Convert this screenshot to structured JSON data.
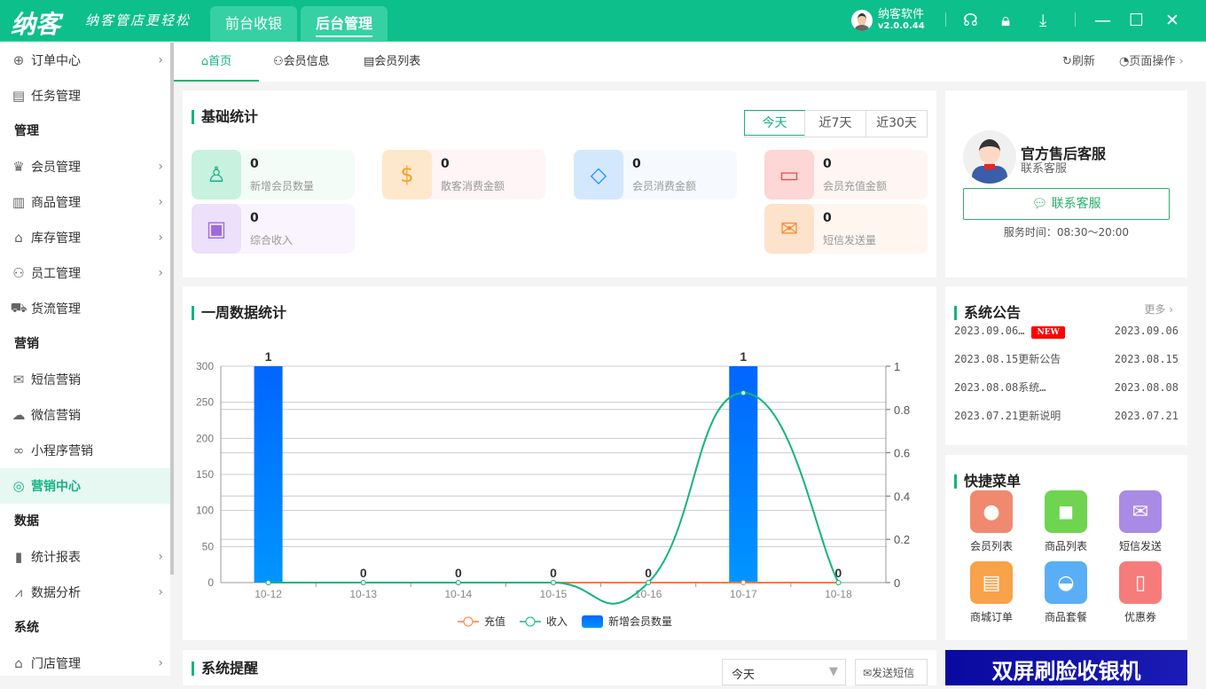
{
  "app": {
    "logo": "纳客",
    "slogan": "纳客管店更轻松",
    "tabs": [
      "前台收银",
      "后台管理"
    ],
    "active_tab": 1,
    "user": "纳客软件",
    "version": "v2.0.0.44"
  },
  "colors": {
    "brand": "#0dbf8b",
    "accent": "#12b383"
  },
  "sidebar": {
    "items": [
      {
        "type": "item",
        "label": "订单中心",
        "icon": "globe-icon",
        "chev": true
      },
      {
        "type": "item",
        "label": "任务管理",
        "icon": "task-icon"
      },
      {
        "type": "group",
        "label": "管理"
      },
      {
        "type": "item",
        "label": "会员管理",
        "icon": "crown-icon",
        "chev": true
      },
      {
        "type": "item",
        "label": "商品管理",
        "icon": "goods-icon",
        "chev": true
      },
      {
        "type": "item",
        "label": "库存管理",
        "icon": "warehouse-icon",
        "chev": true
      },
      {
        "type": "item",
        "label": "员工管理",
        "icon": "staff-icon",
        "chev": true
      },
      {
        "type": "item",
        "label": "货流管理",
        "icon": "truck-icon"
      },
      {
        "type": "group",
        "label": "营销"
      },
      {
        "type": "item",
        "label": "短信营销",
        "icon": "mail-icon"
      },
      {
        "type": "item",
        "label": "微信营销",
        "icon": "wechat-icon"
      },
      {
        "type": "item",
        "label": "小程序营销",
        "icon": "miniapp-icon"
      },
      {
        "type": "item",
        "label": "营销中心",
        "icon": "target-icon",
        "active": true
      },
      {
        "type": "group",
        "label": "数据"
      },
      {
        "type": "item",
        "label": "统计报表",
        "icon": "bar-chart-icon",
        "chev": true
      },
      {
        "type": "item",
        "label": "数据分析",
        "icon": "line-chart-icon",
        "chev": true
      },
      {
        "type": "group",
        "label": "系统"
      },
      {
        "type": "item",
        "label": "门店管理",
        "icon": "store-icon",
        "chev": true
      }
    ]
  },
  "page_tabs": [
    "首页",
    "会员信息",
    "会员列表"
  ],
  "page_actions": {
    "refresh": "刷新",
    "page_ops": "页面操作"
  },
  "basic_stats": {
    "title": "基础统计",
    "ranges": [
      "今天",
      "近7天",
      "近30天"
    ],
    "selected": 0,
    "items": [
      {
        "value": "0",
        "label": "新增会员数量",
        "icon": "user-icon",
        "color": "#12b383",
        "bg": "#c8f1df",
        "bg2": "#f3fcf6"
      },
      {
        "value": "0",
        "label": "散客消费金额",
        "icon": "coin-icon",
        "color": "#f5a022",
        "bg": "#fde8cc",
        "bg2": "#fff4f6"
      },
      {
        "value": "0",
        "label": "会员消费金额",
        "icon": "diamond-icon",
        "color": "#1e90ff",
        "bg": "#d3e8fd",
        "bg2": "#f6fafe"
      },
      {
        "value": "0",
        "label": "会员充值金额",
        "icon": "card-icon",
        "color": "#f04848",
        "bg": "#fdd6d6",
        "bg2": "#fff5f3"
      },
      {
        "value": "0",
        "label": "综合收入",
        "icon": "wallet-icon",
        "color": "#9d6bdc",
        "bg": "#ece0fa",
        "bg2": "#f9f4fe"
      },
      {
        "value": "0",
        "label": "短信发送量",
        "icon": "envelope-icon",
        "color": "#f58a2b",
        "bg": "#fde2cc",
        "bg2": "#fff6f0"
      }
    ]
  },
  "service": {
    "title": "官方售后客服",
    "subtitle": "联系客服",
    "button": "联系客服",
    "hours": "服务时间：08:30～20:00"
  },
  "week_chart": {
    "title": "一周数据统计"
  },
  "chart_data": {
    "type": "bar",
    "categories": [
      "10-12",
      "10-13",
      "10-14",
      "10-15",
      "10-16",
      "10-17",
      "10-18"
    ],
    "y_left": {
      "range": [
        0,
        300
      ],
      "ticks": [
        "0",
        "50",
        "100",
        "150",
        "200",
        "250",
        "300"
      ]
    },
    "y_right": {
      "range": [
        0,
        1
      ],
      "ticks": [
        "0",
        "0.2",
        "0.4",
        "0.6",
        "0.8",
        "1"
      ]
    },
    "grid": true,
    "legend": "bottom",
    "series": [
      {
        "name": "充值",
        "type": "line",
        "axis": "left",
        "color": "#ff7a3d",
        "values": [
          0,
          0,
          0,
          0,
          0,
          0,
          0
        ]
      },
      {
        "name": "收入",
        "type": "line",
        "axis": "left",
        "color": "#12b383",
        "values": [
          0,
          0,
          0,
          0,
          0,
          263,
          0
        ]
      },
      {
        "name": "新增会员数量",
        "type": "bar",
        "axis": "right",
        "color": "#0066ff",
        "values": [
          1,
          0,
          0,
          0,
          0,
          1,
          0
        ],
        "labels": [
          "1",
          "0",
          "0",
          "0",
          "0",
          "1",
          "0"
        ]
      }
    ]
  },
  "notices": {
    "title": "系统公告",
    "more": "更多",
    "new_badge": "NEW",
    "items": [
      {
        "title": "2023.09.06…",
        "date": "2023.09.06",
        "new": true
      },
      {
        "title": "2023.08.15更新公告",
        "date": "2023.08.15"
      },
      {
        "title": "2023.08.08系统…",
        "date": "2023.08.08"
      },
      {
        "title": "2023.07.21更新说明",
        "date": "2023.07.21"
      }
    ]
  },
  "quick_menu": {
    "title": "快捷菜单",
    "items": [
      {
        "label": "会员列表",
        "icon": "member-icon",
        "color": "#f08a6f"
      },
      {
        "label": "商品列表",
        "icon": "bag-icon",
        "color": "#6fd44f"
      },
      {
        "label": "短信发送",
        "icon": "sms-icon",
        "color": "#a98be6"
      },
      {
        "label": "商城订单",
        "icon": "order-icon",
        "color": "#f8a24a"
      },
      {
        "label": "商品套餐",
        "icon": "basket-icon",
        "color": "#5aaef5"
      },
      {
        "label": "优惠券",
        "icon": "coupon-icon",
        "color": "#f67c7c"
      }
    ]
  },
  "reminder": {
    "title": "系统提醒",
    "range": "今天",
    "send_sms": "发送短信"
  },
  "banner": {
    "text": "双屏刷脸收银机"
  }
}
